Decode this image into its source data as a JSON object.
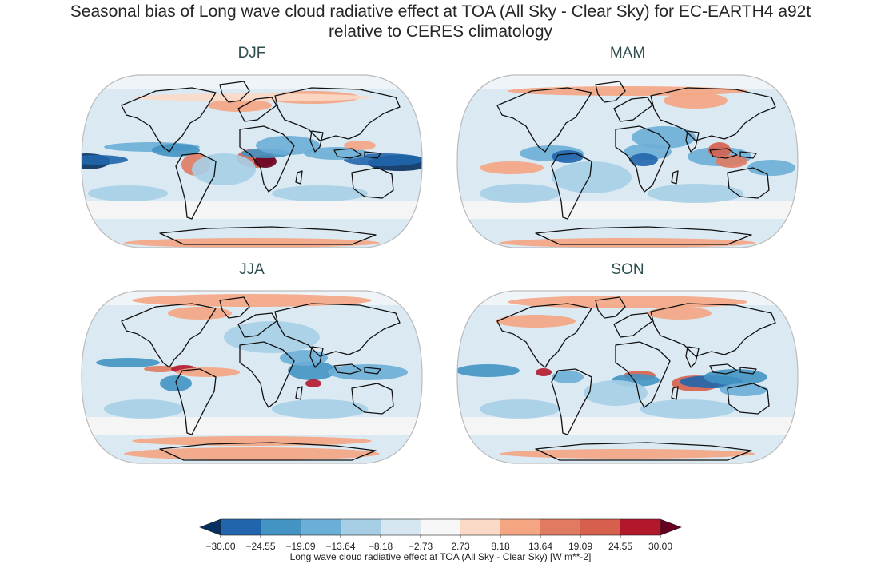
{
  "title_line1": "Seasonal bias of Long wave cloud radiative effect at TOA (All Sky - Clear Sky) for EC-EARTH4 a92t",
  "title_line2": "relative to CERES climatology",
  "panels": [
    {
      "label": "DJF"
    },
    {
      "label": "MAM"
    },
    {
      "label": "JJA"
    },
    {
      "label": "SON"
    }
  ],
  "colorbar": {
    "label": "Long wave cloud radiative effect at TOA (All Sky - Clear Sky) [W m**-2]",
    "ticks": [
      "−30.00",
      "−24.55",
      "−19.09",
      "−13.64",
      "−8.18",
      "−2.73",
      "2.73",
      "8.18",
      "13.64",
      "19.09",
      "24.55",
      "30.00"
    ],
    "colors": [
      "#053061",
      "#2166ac",
      "#4393c3",
      "#6baed6",
      "#a6cfe6",
      "#d6e7f1",
      "#f7f7f7",
      "#fbd9c7",
      "#f4a582",
      "#e07b62",
      "#d6604d",
      "#b2182b",
      "#67001f"
    ]
  },
  "chart_data": {
    "type": "heatmap",
    "panels": [
      "DJF",
      "MAM",
      "JJA",
      "SON"
    ],
    "levels": [
      -30.0,
      -24.55,
      -19.09,
      -13.64,
      -8.18,
      -2.73,
      2.73,
      8.18,
      13.64,
      19.09,
      24.55,
      30.0
    ],
    "units": "W m**-2",
    "colormap": "RdBu_r",
    "extend": "both",
    "projection": "Robinson"
  }
}
